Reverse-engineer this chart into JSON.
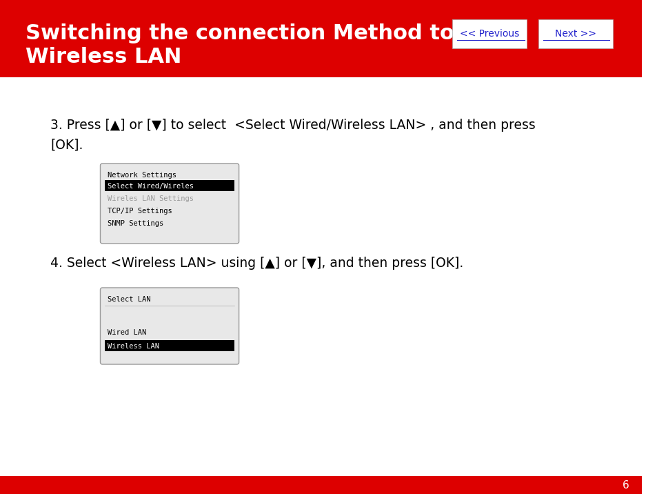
{
  "title_line1": "Switching the connection Method to",
  "title_line2": "Wireless LAN",
  "header_bg": "#DD0000",
  "header_text_color": "#FFFFFF",
  "footer_bg": "#DD0000",
  "body_bg": "#FFFFFF",
  "page_number": "6",
  "btn_prev_text": "<< Previous",
  "btn_next_text": "Next >>",
  "btn_text_color": "#2222CC",
  "btn_bg": "#FFFFFF",
  "para3_text": "3. Press [▲] or [▼] to select  <Select Wired/Wireless LAN> , and then press\n[OK].",
  "para4_text": "4. Select <Wireless LAN> using [▲] or [▼], and then press [OK].",
  "menu1_title": "Network Settings",
  "menu1_items": [
    "Select Wired/Wireles",
    "Wireles LAN Settings",
    "TCP/IP Settings",
    "SNMP Settings"
  ],
  "menu1_selected": 0,
  "menu2_title": "Select LAN",
  "menu2_items": [
    "Wired LAN",
    "Wireless LAN"
  ],
  "menu2_selected": 1,
  "menu_bg": "#E8E8E8",
  "menu_selected_bg": "#000000",
  "menu_selected_fg": "#FFFFFF",
  "menu_normal_fg": "#000000",
  "menu_greyed_fg": "#999999"
}
